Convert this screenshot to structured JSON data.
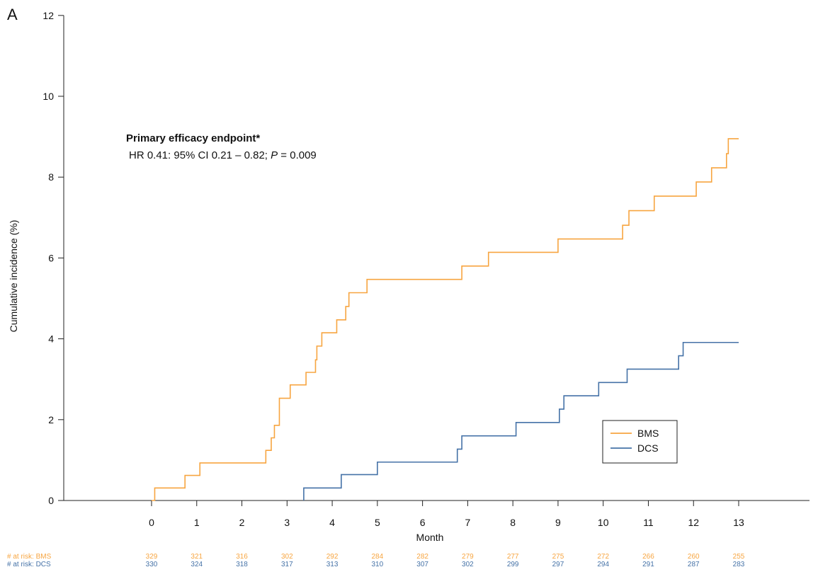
{
  "chart_data": {
    "type": "line",
    "panel_label": "A",
    "xlabel": "Month",
    "ylabel": "Cumulative incidence (%)",
    "x_ticks": [
      0,
      1,
      2,
      3,
      4,
      5,
      6,
      7,
      8,
      9,
      10,
      11,
      12,
      13
    ],
    "y_ticks": [
      0,
      2,
      4,
      6,
      8,
      10,
      12
    ],
    "ylim": [
      0,
      12
    ],
    "annotation": {
      "title": "Primary efficacy endpoint*",
      "prefix": "HR 0.41: 95% CI 0.21 – 0.82; ",
      "p_label": "P",
      "p_value": " = 0.009"
    },
    "legend": {
      "position": "lower-right",
      "entries": [
        "BMS",
        "DCS"
      ]
    },
    "series": [
      {
        "name": "BMS",
        "color": "#f7a540",
        "steps": [
          [
            0,
            0
          ],
          [
            0.07,
            0.31
          ],
          [
            0.74,
            0.62
          ],
          [
            1.07,
            0.93
          ],
          [
            2.53,
            1.24
          ],
          [
            2.65,
            1.55
          ],
          [
            2.72,
            1.86
          ],
          [
            2.83,
            2.53
          ],
          [
            3.07,
            2.86
          ],
          [
            3.42,
            3.17
          ],
          [
            3.63,
            3.48
          ],
          [
            3.66,
            3.82
          ],
          [
            3.77,
            4.15
          ],
          [
            4.1,
            4.47
          ],
          [
            4.3,
            4.8
          ],
          [
            4.37,
            5.14
          ],
          [
            4.77,
            5.47
          ],
          [
            6.87,
            5.8
          ],
          [
            7.46,
            6.14
          ],
          [
            9.0,
            6.47
          ],
          [
            10.43,
            6.81
          ],
          [
            10.57,
            7.17
          ],
          [
            11.13,
            7.53
          ],
          [
            12.06,
            7.88
          ],
          [
            12.4,
            8.23
          ],
          [
            12.73,
            8.58
          ],
          [
            12.77,
            8.95
          ],
          [
            13.0,
            8.95
          ]
        ]
      },
      {
        "name": "DCS",
        "color": "#4572a7",
        "steps": [
          [
            3.37,
            0
          ],
          [
            3.37,
            0.31
          ],
          [
            4.2,
            0.64
          ],
          [
            5.0,
            0.95
          ],
          [
            6.77,
            1.27
          ],
          [
            6.87,
            1.6
          ],
          [
            8.07,
            1.93
          ],
          [
            9.03,
            2.26
          ],
          [
            9.13,
            2.59
          ],
          [
            9.9,
            2.92
          ],
          [
            10.53,
            3.25
          ],
          [
            11.67,
            3.58
          ],
          [
            11.77,
            3.91
          ],
          [
            13.0,
            3.91
          ]
        ]
      }
    ],
    "at_risk": {
      "rows": [
        {
          "label": "# at risk: BMS",
          "color": "#f7a540",
          "values": [
            "329",
            "321",
            "316",
            "302",
            "292",
            "284",
            "282",
            "279",
            "277",
            "275",
            "272",
            "266",
            "260",
            "255"
          ]
        },
        {
          "label": "# at risk: DCS",
          "color": "#4572a7",
          "values": [
            "330",
            "324",
            "318",
            "317",
            "313",
            "310",
            "307",
            "302",
            "299",
            "297",
            "294",
            "291",
            "287",
            "283"
          ]
        }
      ]
    }
  }
}
